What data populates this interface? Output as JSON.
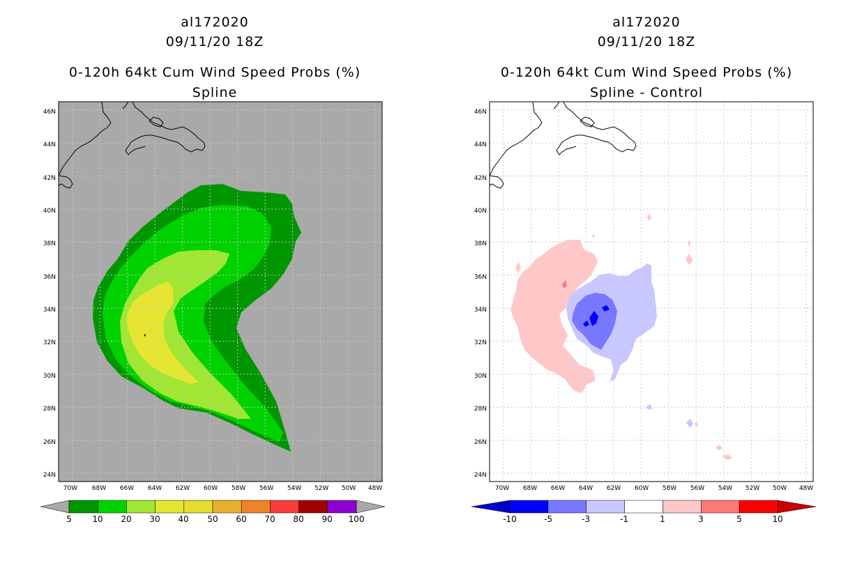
{
  "chart_data": [
    {
      "type": "filled-contour-map",
      "storm_id": "al172020",
      "datetime": "09/11/20 18Z",
      "title": "0-120h 64kt Cum Wind Speed Probs (%)",
      "subtitle": "Spline",
      "x_tick_labels": [
        "70W",
        "68W",
        "66W",
        "64W",
        "62W",
        "60W",
        "58W",
        "56W",
        "54W",
        "52W",
        "50W",
        "48W"
      ],
      "y_tick_labels": [
        "24N",
        "26N",
        "28N",
        "30N",
        "32N",
        "34N",
        "36N",
        "38N",
        "40N",
        "42N",
        "44N",
        "46N"
      ],
      "lon_range": [
        -71,
        -47.5
      ],
      "lat_range": [
        23.5,
        46.5
      ],
      "colorbar_labels": [
        "5",
        "10",
        "20",
        "30",
        "40",
        "50",
        "60",
        "70",
        "80",
        "90",
        "100"
      ],
      "colorbar_colors": [
        "#009600",
        "#00d200",
        "#a0e632",
        "#e6e632",
        "#e6dc32",
        "#e6af2d",
        "#f08228",
        "#fa3c3c",
        "#a00000",
        "#8c00d2"
      ],
      "background_color": "#a9a9a9"
    },
    {
      "type": "filled-contour-map",
      "storm_id": "al172020",
      "datetime": "09/11/20 18Z",
      "title": "0-120h 64kt Cum Wind Speed Probs (%)",
      "subtitle": "Spline - Control",
      "x_tick_labels": [
        "70W",
        "68W",
        "66W",
        "64W",
        "62W",
        "60W",
        "58W",
        "56W",
        "54W",
        "52W",
        "50W",
        "48W"
      ],
      "y_tick_labels": [
        "24N",
        "26N",
        "28N",
        "30N",
        "32N",
        "34N",
        "36N",
        "38N",
        "40N",
        "42N",
        "44N",
        "46N"
      ],
      "lon_range": [
        -71,
        -47.5
      ],
      "lat_range": [
        23.5,
        46.5
      ],
      "colorbar_labels": [
        "-10",
        "-5",
        "-3",
        "-1",
        "1",
        "3",
        "5",
        "10"
      ],
      "colorbar_colors": [
        "#0000c8",
        "#0000ff",
        "#7878ff",
        "#c8c8ff",
        "#ffffff",
        "#ffc8c8",
        "#ff7878",
        "#ff0000",
        "#c80000"
      ],
      "background_color": "#ffffff"
    }
  ]
}
